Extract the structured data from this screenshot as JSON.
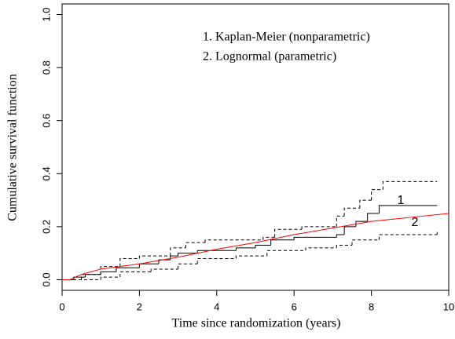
{
  "chart_data": {
    "type": "line",
    "x_label": "Time since randomization (years)",
    "y_label": "Cumulative survival function",
    "xlim": [
      0,
      10
    ],
    "ylim": [
      -0.04,
      1.04
    ],
    "xticks": [
      0,
      2,
      4,
      6,
      8,
      10
    ],
    "yticks": [
      {
        "value": 0,
        "label": "0.0"
      },
      {
        "value": 0.2,
        "label": "0.2"
      },
      {
        "value": 0.4,
        "label": "0.4"
      },
      {
        "value": 0.6,
        "label": "0.6"
      },
      {
        "value": 0.8,
        "label": "0.8"
      },
      {
        "value": 1,
        "label": "1.0"
      }
    ],
    "legend_text": [
      "1. Kaplan-Meier (nonparametric)",
      "2.  Lognormal (parametric)"
    ],
    "series": [
      {
        "label": "1",
        "color": "#000000",
        "step": true,
        "dash": false,
        "x": [
          0,
          0.3,
          0.6,
          1,
          1.4,
          2,
          2.5,
          2.8,
          3,
          3.5,
          4.5,
          5,
          5.4,
          6,
          7.1,
          7.3,
          7.6,
          7.9,
          8.2,
          9.7
        ],
        "values": [
          0,
          0.01,
          0.02,
          0.03,
          0.045,
          0.06,
          0.075,
          0.09,
          0.1,
          0.11,
          0.12,
          0.13,
          0.15,
          0.16,
          0.17,
          0.2,
          0.22,
          0.25,
          0.28,
          0.28
        ]
      },
      {
        "color": "#000000",
        "step": true,
        "dash": true,
        "x": [
          0,
          0.5,
          1,
          1.5,
          2,
          2.8,
          3.2,
          3.7,
          5.2,
          5.5,
          6.2,
          7.1,
          7.3,
          7.7,
          8,
          8.3,
          9.7
        ],
        "values": [
          0,
          0.02,
          0.05,
          0.08,
          0.09,
          0.12,
          0.14,
          0.15,
          0.16,
          0.19,
          0.2,
          0.24,
          0.27,
          0.3,
          0.34,
          0.37,
          0.37
        ]
      },
      {
        "color": "#000000",
        "step": true,
        "dash": true,
        "x": [
          0,
          1,
          1.5,
          2.3,
          3,
          3.5,
          4.5,
          5.3,
          6.3,
          7.1,
          7.5,
          8.2,
          9.7
        ],
        "values": [
          0,
          0.01,
          0.03,
          0.04,
          0.06,
          0.08,
          0.09,
          0.11,
          0.12,
          0.13,
          0.15,
          0.17,
          0.18
        ]
      },
      {
        "label": "2",
        "color": "#ff0000",
        "step": false,
        "dash": false,
        "x": [
          0,
          0.2,
          0.5,
          1,
          2,
          3,
          4,
          5,
          6,
          7,
          8,
          9,
          10
        ],
        "values": [
          0,
          0,
          0.02,
          0.04,
          0.06,
          0.085,
          0.115,
          0.14,
          0.17,
          0.195,
          0.22,
          0.235,
          0.25
        ]
      }
    ]
  }
}
